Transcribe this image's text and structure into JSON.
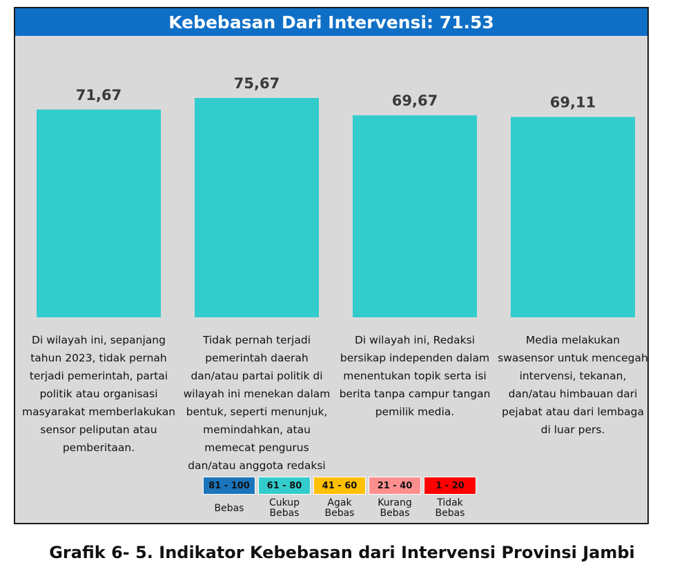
{
  "title": "Kebebasan Dari Intervensi: 71.53",
  "caption": "Grafik 6- 5. Indikator Kebebasan dari Intervensi Provinsi Jambi",
  "colors": {
    "bar": "#33cccc",
    "header": "#0f6fc6",
    "panel": "#d9d9d9"
  },
  "chart_data": {
    "type": "bar",
    "title": "Kebebasan Dari Intervensi: 71.53",
    "categories": [
      "Di wilayah ini, sepanjang tahun 2023, tidak pernah terjadi pemerintah, partai politik atau organisasi masyarakat memberlakukan sensor peliputan atau pemberitaan.",
      "Tidak pernah terjadi pemerintah daerah dan/atau partai politik di wilayah ini menekan dalam bentuk, seperti menunjuk, memindahkan, atau memecat pengurus dan/atau anggota redaksi",
      "Di wilayah ini, Redaksi bersikap independen dalam menentukan topik serta isi berita tanpa campur tangan pemilik media.",
      "Media melakukan swasensor untuk mencegah intervensi, tekanan, dan/atau himbauan dari pejabat atau dari lembaga di luar pers."
    ],
    "category_lines": [
      [
        "Di wilayah ini, sepanjang",
        "tahun 2023, tidak pernah",
        "terjadi pemerintah, partai",
        "politik atau organisasi",
        "masyarakat memberlakukan",
        "sensor peliputan atau",
        "pemberitaan."
      ],
      [
        "Tidak pernah terjadi",
        "pemerintah daerah",
        "dan/atau partai politik di",
        "wilayah ini menekan dalam",
        "bentuk, seperti menunjuk,",
        "memindahkan, atau",
        "memecat pengurus",
        "dan/atau anggota redaksi"
      ],
      [
        "Di wilayah ini, Redaksi",
        "bersikap independen dalam",
        "menentukan topik serta isi",
        "berita tanpa campur tangan",
        "pemilik media."
      ],
      [
        "Media melakukan",
        "swasensor untuk mencegah",
        "intervensi, tekanan,",
        "dan/atau himbauan dari",
        "pejabat atau dari lembaga",
        "di luar pers."
      ]
    ],
    "values": [
      71.67,
      75.67,
      69.67,
      69.11
    ],
    "data_labels": [
      "71,67",
      "75,67",
      "69,67",
      "69,11"
    ],
    "legend": [
      {
        "range": "81 - 100",
        "label": "Bebas",
        "color": "#1b75bc"
      },
      {
        "range": "61 - 80",
        "label": "Cukup Bebas",
        "color": "#33cccc"
      },
      {
        "range": "41 - 60",
        "label": "Agak Bebas",
        "color": "#ffc000"
      },
      {
        "range": "21 - 40",
        "label": "Kurang Bebas",
        "color": "#ff8f8f"
      },
      {
        "range": "1 - 20",
        "label": "Tidak Bebas",
        "color": "#ff0000"
      }
    ],
    "legend_position": "bottom-center",
    "grid": false,
    "xlabel": "",
    "ylabel": ""
  }
}
